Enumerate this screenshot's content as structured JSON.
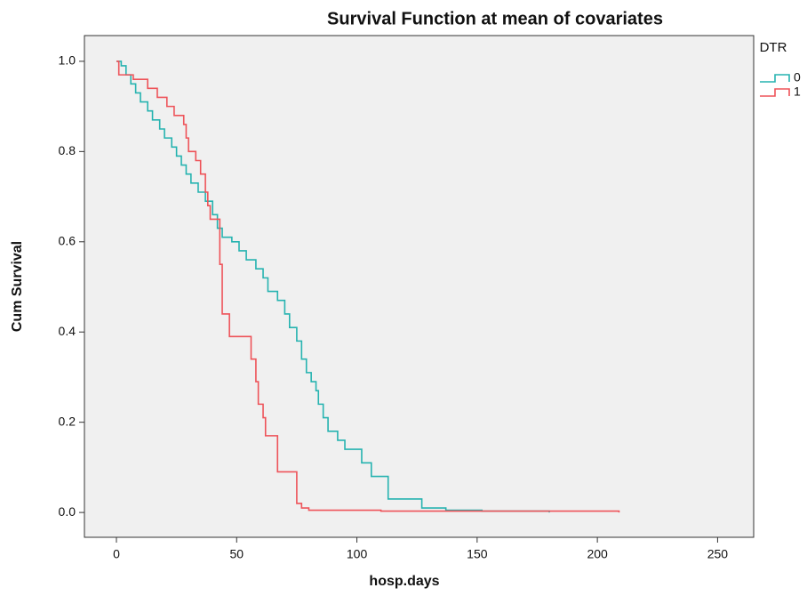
{
  "chart_data": {
    "type": "line",
    "step": true,
    "title": "Survival Function at mean of covariates",
    "x_label": "hosp.days",
    "y_label": "Cum Survival",
    "legend_title": "DTR",
    "legend_position": "right",
    "xlim": [
      -13.3,
      265
    ],
    "ylim": [
      -0.055,
      1.057
    ],
    "xticks": [
      0,
      50,
      100,
      150,
      200,
      250
    ],
    "yticks": [
      {
        "value": 0,
        "label": "0.0"
      },
      0.2,
      0.4,
      0.6,
      0.8,
      {
        "value": 1,
        "label": "1.0"
      }
    ],
    "series": [
      {
        "name": "0",
        "color": "#26b3b0",
        "x": [
          0,
          2,
          4,
          6,
          8,
          10,
          13,
          15,
          18,
          20,
          23,
          25,
          27,
          29,
          31,
          34,
          37,
          40,
          42,
          44,
          48,
          51,
          54,
          58,
          61,
          63,
          67,
          70,
          72,
          75,
          77,
          79,
          81,
          83,
          84,
          86,
          88,
          92,
          95,
          102,
          106,
          113,
          127,
          137,
          152,
          180
        ],
        "values": [
          1.0,
          0.99,
          0.97,
          0.95,
          0.93,
          0.91,
          0.89,
          0.87,
          0.85,
          0.83,
          0.81,
          0.79,
          0.77,
          0.75,
          0.73,
          0.71,
          0.69,
          0.66,
          0.63,
          0.61,
          0.6,
          0.58,
          0.56,
          0.54,
          0.52,
          0.49,
          0.47,
          0.44,
          0.41,
          0.38,
          0.34,
          0.31,
          0.29,
          0.27,
          0.24,
          0.21,
          0.18,
          0.16,
          0.14,
          0.11,
          0.08,
          0.03,
          0.01,
          0.005,
          0.003,
          0.0
        ]
      },
      {
        "name": "1",
        "color": "#ee5359",
        "x": [
          0,
          1,
          7,
          13,
          17,
          21,
          24,
          28,
          29,
          30,
          33,
          35,
          37,
          38,
          39,
          43,
          44,
          47,
          56,
          58,
          59,
          61,
          62,
          67,
          75,
          77,
          80,
          110,
          209
        ],
        "values": [
          1.0,
          0.97,
          0.96,
          0.94,
          0.92,
          0.9,
          0.88,
          0.86,
          0.83,
          0.8,
          0.78,
          0.75,
          0.71,
          0.68,
          0.65,
          0.55,
          0.44,
          0.39,
          0.34,
          0.29,
          0.24,
          0.21,
          0.17,
          0.09,
          0.02,
          0.01,
          0.005,
          0.003,
          0.0
        ]
      }
    ]
  }
}
